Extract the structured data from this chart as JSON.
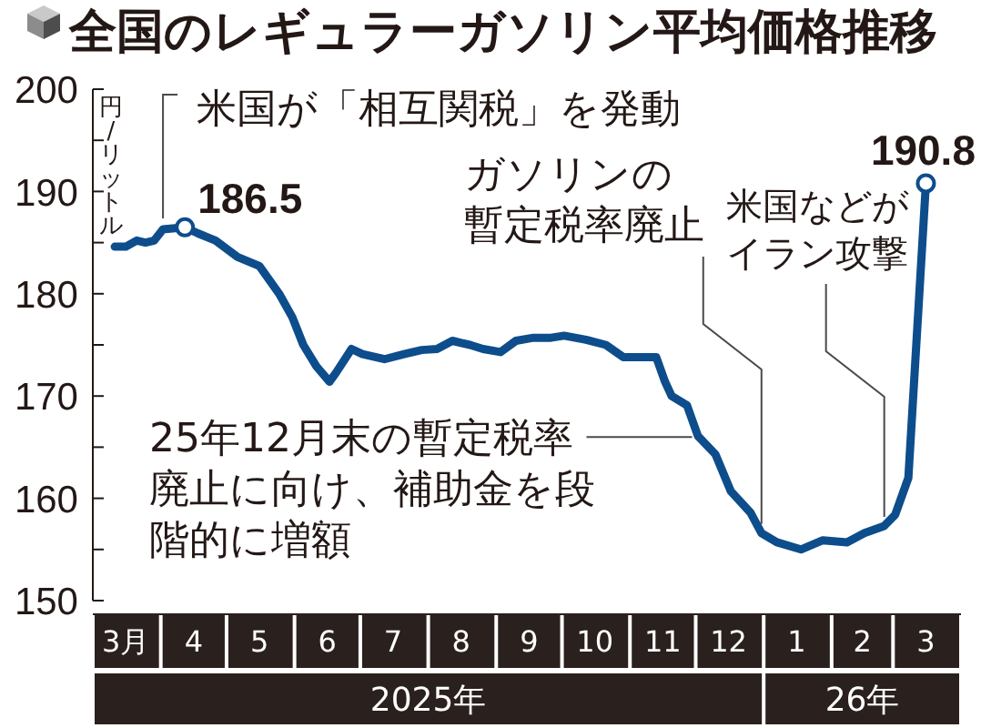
{
  "chart_data": {
    "type": "line",
    "title": "全国のレギュラーガソリン平均価格推移",
    "ylabel": "円/リットル",
    "color": "#0d4d8c",
    "line_style": "solid",
    "x": [
      "2025-03-11",
      "2025-03-16",
      "2025-03-21",
      "2025-03-25",
      "2025-03-29",
      "2025-04-02",
      "2025-04-12",
      "2025-04-18",
      "2025-04-26",
      "2025-05-06",
      "2025-05-16",
      "2025-05-25",
      "2025-05-31",
      "2025-06-05",
      "2025-06-11",
      "2025-06-17",
      "2025-06-20",
      "2025-06-27",
      "2025-07-02",
      "2025-07-12",
      "2025-07-21",
      "2025-07-29",
      "2025-08-05",
      "2025-08-12",
      "2025-08-20",
      "2025-08-26",
      "2025-09-03",
      "2025-09-10",
      "2025-09-18",
      "2025-09-26",
      "2025-10-02",
      "2025-10-12",
      "2025-10-21",
      "2025-10-29",
      "2025-11-08",
      "2025-11-13",
      "2025-11-17",
      "2025-11-20",
      "2025-11-27",
      "2025-12-02",
      "2025-12-10",
      "2025-12-17",
      "2025-12-26",
      "2025-12-31",
      "2026-01-07",
      "2026-01-18",
      "2026-01-28",
      "2026-02-08",
      "2026-02-16",
      "2026-02-25",
      "2026-03-02",
      "2026-03-08",
      "2026-03-16"
    ],
    "values": [
      184.6,
      184.6,
      185.2,
      185.0,
      185.2,
      186.3,
      186.5,
      185.9,
      185.2,
      183.6,
      182.7,
      180.0,
      177.7,
      175.0,
      172.9,
      171.4,
      172.3,
      174.6,
      174.1,
      173.6,
      174.1,
      174.5,
      174.6,
      175.4,
      175.0,
      174.6,
      174.3,
      175.4,
      175.7,
      175.7,
      175.9,
      175.5,
      175.0,
      173.8,
      173.8,
      173.8,
      171.4,
      170.0,
      169.1,
      166.1,
      164.3,
      160.7,
      158.6,
      156.6,
      155.7,
      155.0,
      155.9,
      155.7,
      156.6,
      157.3,
      158.4,
      162.0,
      190.8
    ],
    "value_labels": [
      null,
      null,
      null,
      null,
      null,
      null,
      "186.5",
      null,
      null,
      null,
      null,
      null,
      null,
      null,
      null,
      null,
      null,
      null,
      null,
      null,
      null,
      null,
      null,
      null,
      null,
      null,
      null,
      null,
      null,
      null,
      null,
      null,
      null,
      null,
      null,
      null,
      null,
      null,
      null,
      null,
      null,
      null,
      null,
      null,
      null,
      null,
      null,
      null,
      null,
      null,
      null,
      null,
      "190.8"
    ],
    "xlim": [
      "2025-03-01",
      "2026-04-01"
    ],
    "xticks": [
      {
        "value": "2025-03-16",
        "label": "3月"
      },
      {
        "value": "2025-04-16",
        "label": "4"
      },
      {
        "value": "2025-05-16",
        "label": "5"
      },
      {
        "value": "2025-06-16",
        "label": "6"
      },
      {
        "value": "2025-07-16",
        "label": "7"
      },
      {
        "value": "2025-08-16",
        "label": "8"
      },
      {
        "value": "2025-09-16",
        "label": "9"
      },
      {
        "value": "2025-10-16",
        "label": "10"
      },
      {
        "value": "2025-11-16",
        "label": "11"
      },
      {
        "value": "2025-12-16",
        "label": "12"
      },
      {
        "value": "2026-01-16",
        "label": "1"
      },
      {
        "value": "2026-02-15",
        "label": "2"
      },
      {
        "value": "2026-03-16",
        "label": "3"
      }
    ],
    "ylim": [
      150,
      200
    ],
    "yticks": [
      150,
      {
        "value": 155,
        "label": null
      },
      160,
      {
        "value": 165,
        "label": null
      },
      170,
      {
        "value": 175,
        "label": null
      },
      180,
      {
        "value": 185,
        "label": null
      },
      190,
      {
        "value": 195,
        "label": null
      },
      200
    ],
    "annotations": [
      {
        "text": "米国が「相互関税」を発動",
        "x": "2025-04-02",
        "y": 186.3
      },
      {
        "text": "ガソリンの暫定税率廃止",
        "x": "2025-12-31",
        "y": 156.6
      },
      {
        "text": "米国などがイラン攻撃",
        "x": "2026-02-25",
        "y": 157.3
      },
      {
        "text": "25年12月末の暫定税率廃止に向け、補助金を段階的に増額",
        "x": "2025-12-01",
        "y": 166
      },
      "2025年",
      "26年"
    ]
  }
}
